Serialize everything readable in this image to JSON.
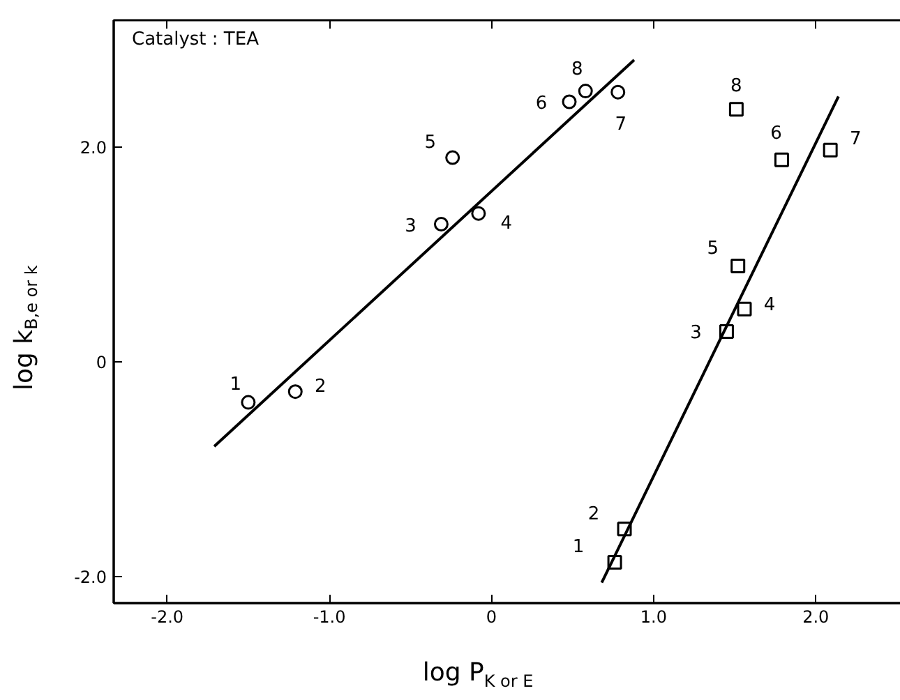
{
  "chart_data": {
    "type": "scatter",
    "xlabel": "log P$_{K or E}$",
    "ylabel": "log k$_{B,e or k}$",
    "xlim": [
      -2.33,
      2.61
    ],
    "ylim": [
      -2.25,
      3.18
    ],
    "xticks": [
      {
        "value": -2,
        "label": "-2.0"
      },
      {
        "value": -1,
        "label": "-1.0"
      },
      0,
      {
        "value": 1,
        "label": "1.0"
      },
      {
        "value": 2,
        "label": "2.0"
      }
    ],
    "yticks": [
      {
        "value": -2,
        "label": "-2.0"
      },
      0,
      {
        "value": 2,
        "label": "2.0"
      }
    ],
    "grid": false,
    "series": [
      {
        "type": "scatter",
        "marker": "circle",
        "color": "#000000",
        "x": [
          -1.5,
          -1.21,
          -0.31,
          -0.08,
          -0.24,
          0.48,
          0.78,
          0.58
        ],
        "values": [
          -0.38,
          -0.28,
          1.28,
          1.38,
          1.9,
          2.42,
          2.51,
          2.52
        ]
      },
      {
        "type": "scatter",
        "marker": "square",
        "color": "#000000",
        "x": [
          0.76,
          0.82,
          1.45,
          1.56,
          1.52,
          1.79,
          2.09,
          1.51
        ],
        "values": [
          -1.87,
          -1.56,
          0.28,
          0.49,
          0.89,
          1.88,
          1.97,
          2.35
        ]
      },
      {
        "type": "line",
        "line_style": "solid",
        "color": "#000000",
        "x": [
          -1.71,
          0.88
        ],
        "values": [
          -0.79,
          2.81
        ]
      },
      {
        "type": "line",
        "line_style": "solid",
        "color": "#000000",
        "x": [
          0.68,
          2.14
        ],
        "values": [
          -2.06,
          2.47
        ]
      }
    ],
    "annotations": [
      "Catalyst : TEA",
      {
        "text": "1",
        "x": -1.5,
        "y": -0.38
      },
      {
        "text": "2",
        "x": -1.21,
        "y": -0.28
      },
      {
        "text": "3",
        "x": -0.31,
        "y": 1.28
      },
      {
        "text": "4",
        "x": -0.08,
        "y": 1.38
      },
      {
        "text": "5",
        "x": -0.24,
        "y": 1.9
      },
      {
        "text": "6",
        "x": 0.48,
        "y": 2.42
      },
      {
        "text": "7",
        "x": 0.78,
        "y": 2.51
      },
      {
        "text": "8",
        "x": 0.58,
        "y": 2.52
      },
      {
        "text": "1",
        "x": 0.76,
        "y": -1.87
      },
      {
        "text": "2",
        "x": 0.82,
        "y": -1.56
      },
      {
        "text": "3",
        "x": 1.45,
        "y": 0.28
      },
      {
        "text": "4",
        "x": 1.56,
        "y": 0.49
      },
      {
        "text": "5",
        "x": 1.52,
        "y": 0.89
      },
      {
        "text": "6",
        "x": 1.79,
        "y": 1.88
      },
      {
        "text": "7",
        "x": 2.09,
        "y": 1.97
      },
      {
        "text": "8",
        "x": 1.51,
        "y": 2.35
      }
    ]
  }
}
